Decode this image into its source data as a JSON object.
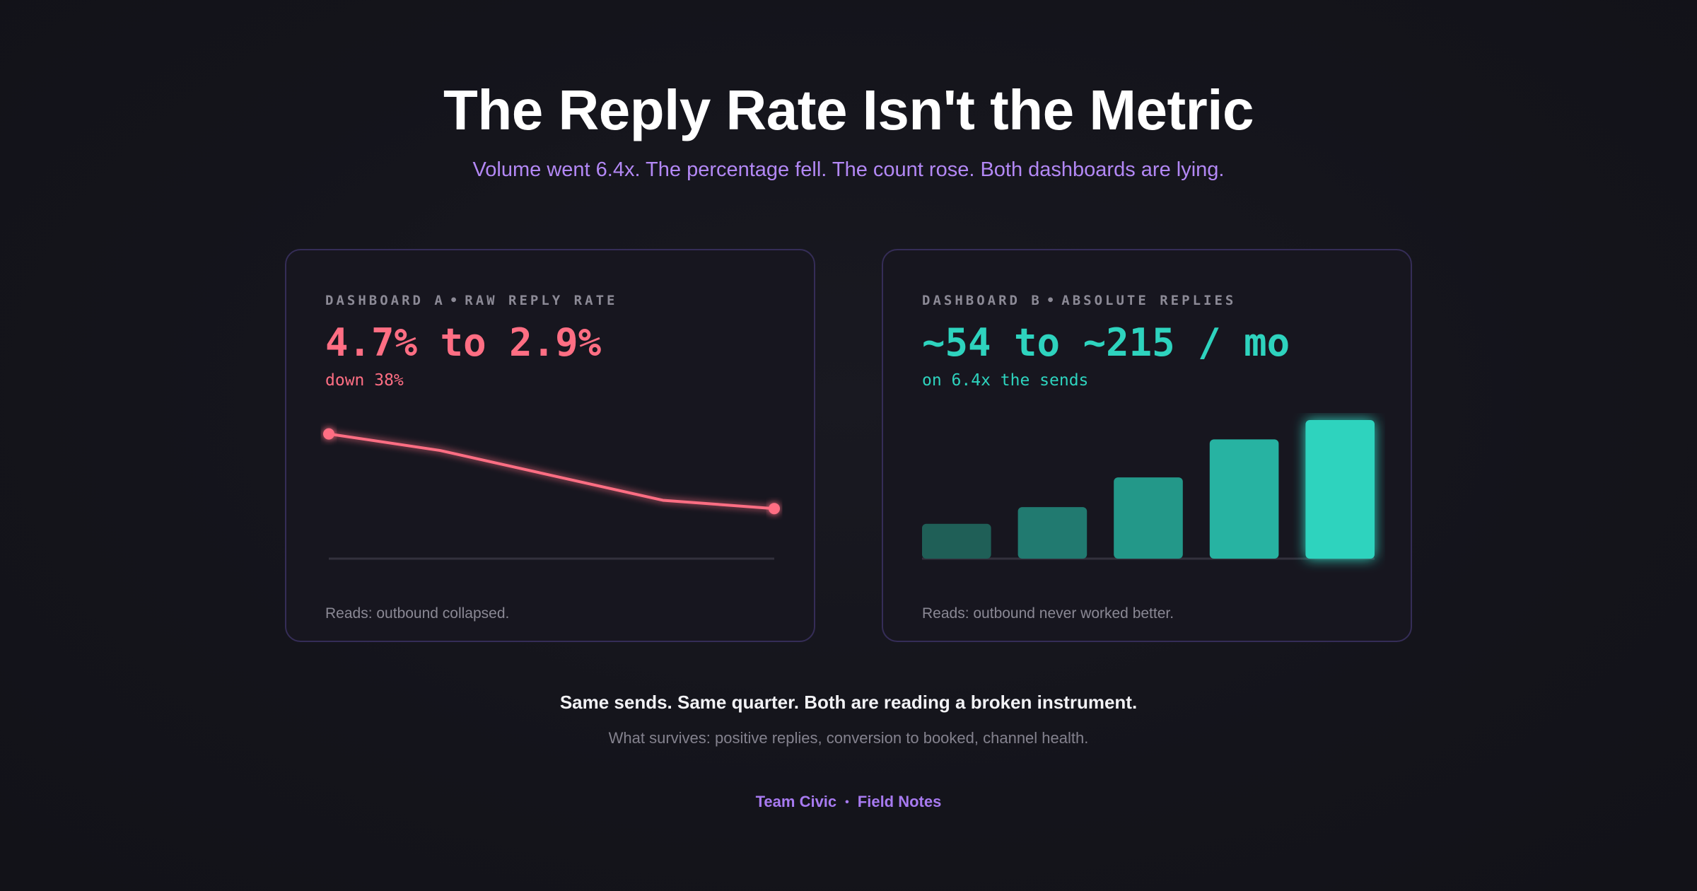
{
  "header": {
    "title": "The Reply Rate Isn't the Metric",
    "subtitle": "Volume went 6.4x. The percentage fell. The count rose. Both dashboards are lying."
  },
  "dashboard_a": {
    "label_left": "DASHBOARD A",
    "label_right": "RAW REPLY RATE",
    "headline": "4.7% to 2.9%",
    "sub": "down 38%",
    "reads": "Reads: outbound collapsed.",
    "color": "#ff6e83"
  },
  "dashboard_b": {
    "label_left": "DASHBOARD B",
    "label_right": "ABSOLUTE REPLIES",
    "headline": "~54 to ~215 / mo",
    "sub": "on 6.4x the sends",
    "reads": "Reads: outbound never worked better.",
    "color": "#2ed3be"
  },
  "chart_data": [
    {
      "type": "line",
      "title": "",
      "xlabel": "",
      "ylabel": "",
      "x": [
        1,
        2,
        3,
        4,
        5
      ],
      "values": [
        4.7,
        4.3,
        3.7,
        3.1,
        2.9
      ],
      "ylim": [
        2.0,
        5.0
      ],
      "markers_on": "endpoints",
      "grid": false,
      "color": "#ff6e83"
    },
    {
      "type": "bar",
      "title": "",
      "xlabel": "",
      "ylabel": "",
      "categories": [
        "1",
        "2",
        "3",
        "4",
        "5"
      ],
      "values": [
        54,
        80,
        126,
        185,
        215
      ],
      "ylim": [
        0,
        215
      ],
      "grid": false,
      "colors": [
        "#1f5f57",
        "#217a70",
        "#239889",
        "#27b3a2",
        "#2ed3be"
      ]
    }
  ],
  "summary": {
    "main": "Same sends. Same quarter. Both are reading a broken instrument.",
    "survives": "What survives: positive replies, conversion to booked, channel health."
  },
  "footer": {
    "left": "Team Civic",
    "right": "Field Notes"
  }
}
